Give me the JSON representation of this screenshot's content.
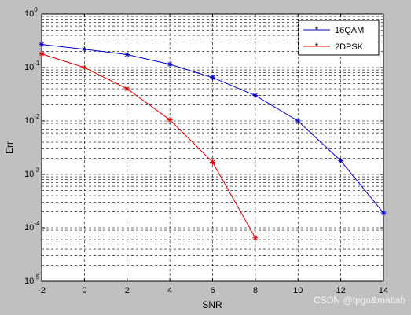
{
  "chart_data": {
    "type": "line",
    "title": "",
    "xlabel": "SNR",
    "ylabel": "Err",
    "xlim": [
      -2,
      14
    ],
    "ylim": [
      1e-05,
      1
    ],
    "yscale": "log",
    "grid": true,
    "legend_position": "top-right",
    "x_ticks": [
      -2,
      0,
      2,
      4,
      6,
      8,
      10,
      12,
      14
    ],
    "x_tick_labels": [
      "-2",
      "0",
      "2",
      "4",
      "6",
      "8",
      "10",
      "12",
      "14"
    ],
    "y_ticks": [
      {
        "value": 1,
        "base": "10",
        "exp": "0"
      },
      {
        "value": 0.1,
        "base": "10",
        "exp": "-1"
      },
      {
        "value": 0.01,
        "base": "10",
        "exp": "-2"
      },
      {
        "value": 0.001,
        "base": "10",
        "exp": "-3"
      },
      {
        "value": 0.0001,
        "base": "10",
        "exp": "-4"
      },
      {
        "value": 1e-05,
        "base": "10",
        "exp": "-5"
      }
    ],
    "series": [
      {
        "name": "16QAM",
        "color": "#0000cc",
        "marker": "*",
        "x": [
          -2,
          0,
          2,
          4,
          6,
          8,
          10,
          12,
          14
        ],
        "y": [
          0.27,
          0.22,
          0.175,
          0.115,
          0.065,
          0.03,
          0.01,
          0.0018,
          0.00019
        ]
      },
      {
        "name": "2DPSK",
        "color": "#e00000",
        "marker": "*",
        "x": [
          -2,
          0,
          2,
          4,
          6,
          8
        ],
        "y": [
          0.18,
          0.1,
          0.04,
          0.0105,
          0.0017,
          6.5e-05
        ]
      }
    ]
  },
  "watermark": "CSDN @fpga&matlab"
}
